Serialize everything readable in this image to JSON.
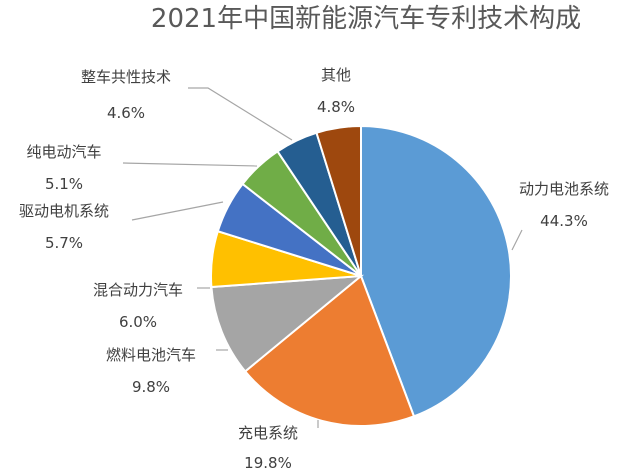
{
  "chart_data": {
    "type": "pie",
    "title": "2021年中国新能源汽车专利技术构成",
    "categories": [
      "动力电池系统",
      "充电系统",
      "燃料电池汽车",
      "混合动力汽车",
      "驱动电机系统",
      "纯电动汽车",
      "整车共性技术",
      "其他"
    ],
    "values": [
      44.3,
      19.8,
      9.8,
      6.0,
      5.7,
      5.1,
      4.6,
      4.8
    ],
    "value_labels": [
      "44.3%",
      "19.8%",
      "9.8%",
      "6.0%",
      "5.7%",
      "5.1%",
      "4.6%",
      "4.8%"
    ],
    "colors": [
      "#5b9bd5",
      "#ed7d31",
      "#a5a5a5",
      "#ffc000",
      "#4472c4",
      "#70ad47",
      "#255e91",
      "#9e480e"
    ],
    "start": "12 o'clock, clockwise",
    "legend": "none"
  }
}
